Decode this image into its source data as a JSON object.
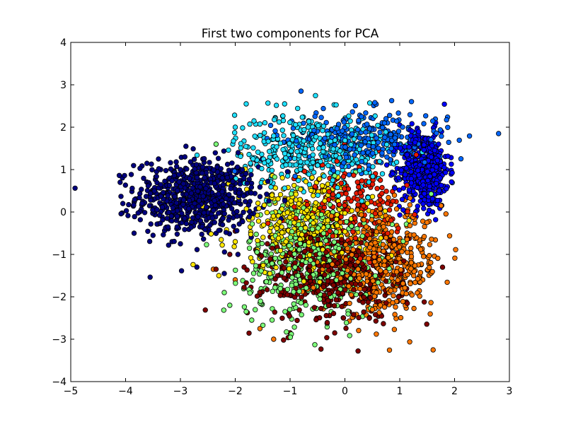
{
  "chart_data": {
    "type": "scatter",
    "title": "First two components for PCA",
    "xlabel": "",
    "ylabel": "",
    "xlim": [
      -5,
      3
    ],
    "ylim": [
      -4,
      4
    ],
    "x_ticks": [
      -5,
      -4,
      -3,
      -2,
      -1,
      0,
      1,
      2,
      3
    ],
    "y_ticks": [
      -4,
      -3,
      -2,
      -1,
      0,
      1,
      2,
      3,
      4
    ],
    "x_tick_labels": [
      "−5",
      "−4",
      "−3",
      "−2",
      "−1",
      "0",
      "1",
      "2",
      "3"
    ],
    "y_tick_labels": [
      "−4",
      "−3",
      "−2",
      "−1",
      "0",
      "1",
      "2",
      "3",
      "4"
    ],
    "grid": false,
    "legend": "none",
    "series": [
      {
        "color": "#00007f",
        "cx": -2.7,
        "cy": 0.35,
        "sx": 0.55,
        "sy": 0.45,
        "n": 700,
        "outliers": [
          [
            -4.1,
            0.7
          ],
          [
            -4.05,
            0.2
          ],
          [
            -3.5,
            -0.55
          ],
          [
            -3.0,
            -0.75
          ],
          [
            -2.7,
            -1.3
          ],
          [
            -2.2,
            -1.45
          ],
          [
            -3.4,
            1.25
          ],
          [
            -2.9,
            1.55
          ]
        ]
      },
      {
        "color": "#0000ff",
        "cx": 1.45,
        "cy": 1.0,
        "sx": 0.22,
        "sy": 0.45,
        "n": 500,
        "outliers": [
          [
            1.0,
            2.05
          ],
          [
            1.85,
            0.55
          ],
          [
            1.6,
            0.0
          ]
        ]
      },
      {
        "color": "#0066ff",
        "cx": 0.4,
        "cy": 1.7,
        "sx": 0.75,
        "sy": 0.35,
        "n": 300,
        "outliers": [
          [
            -0.8,
            2.85
          ],
          [
            0.3,
            2.25
          ],
          [
            0.75,
            2.2
          ]
        ]
      },
      {
        "color": "#1fe0ff",
        "cx": -0.6,
        "cy": 1.45,
        "sx": 0.7,
        "sy": 0.45,
        "n": 400,
        "outliers": [
          [
            -1.8,
            2.55
          ],
          [
            -1.1,
            2.55
          ],
          [
            -2.0,
            2.0
          ]
        ]
      },
      {
        "color": "#7dff79",
        "cx": -0.6,
        "cy": -1.1,
        "sx": 0.6,
        "sy": 0.7,
        "n": 450,
        "outliers": [
          [
            -2.2,
            -1.9
          ],
          [
            -2.1,
            -2.2
          ],
          [
            -1.7,
            -2.55
          ],
          [
            -1.8,
            -2.35
          ],
          [
            -2.35,
            1.6
          ]
        ]
      },
      {
        "color": "#ffe600",
        "cx": -0.8,
        "cy": -0.3,
        "sx": 0.65,
        "sy": 0.55,
        "n": 350,
        "outliers": [
          [
            -2.3,
            -1.5
          ],
          [
            -2.0,
            -0.7
          ],
          [
            -1.9,
            1.35
          ]
        ]
      },
      {
        "color": "#ff7700",
        "cx": 0.7,
        "cy": -1.2,
        "sx": 0.55,
        "sy": 0.6,
        "n": 450,
        "outliers": [
          [
            -1.3,
            -3.0
          ],
          [
            -1.55,
            -2.75
          ],
          [
            -2.0,
            -1.6
          ],
          [
            -2.4,
            -1.35
          ]
        ]
      },
      {
        "color": "#e81a00",
        "cx": 0.1,
        "cy": 0.2,
        "sx": 0.45,
        "sy": 0.5,
        "n": 180,
        "outliers": [
          [
            -2.3,
            0.3
          ],
          [
            1.3,
            1.35
          ]
        ]
      },
      {
        "color": "#7f0000",
        "cx": -0.2,
        "cy": -1.5,
        "sx": 0.65,
        "sy": 0.55,
        "n": 450,
        "outliers": [
          [
            -1.0,
            -2.85
          ],
          [
            -2.35,
            -1.35
          ],
          [
            -2.1,
            -1.0
          ],
          [
            -2.0,
            -0.45
          ]
        ]
      }
    ]
  }
}
